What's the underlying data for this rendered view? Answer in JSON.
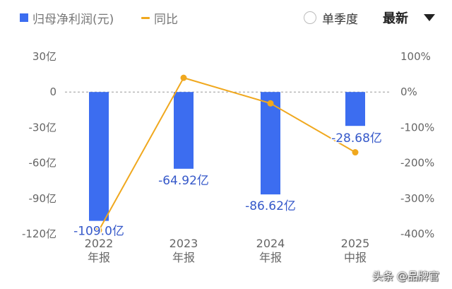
{
  "legend": {
    "bar_label": "归母净利润(元)",
    "line_label": "同比",
    "bar_color": "#3c6df0",
    "line_color": "#f0a81e"
  },
  "controls": {
    "quarter_toggle_label": "单季度",
    "sort_dropdown_label": "最新",
    "dropdown_icon": "caret-down-icon"
  },
  "watermark": "头条 @品牌官",
  "chart_data": {
    "type": "bar",
    "categories": [
      "2022\n年报",
      "2023\n年报",
      "2024\n年报",
      "2025\n中报"
    ],
    "series": [
      {
        "name": "归母净利润(元)",
        "type": "bar",
        "axis": "left",
        "values": [
          -109.0,
          -64.92,
          -86.62,
          -28.68
        ],
        "labels": [
          "-109.0亿",
          "-64.92亿",
          "-86.62亿",
          "-28.68亿"
        ]
      },
      {
        "name": "同比",
        "type": "line",
        "axis": "right",
        "values": [
          -390,
          40,
          -32,
          -170
        ]
      }
    ],
    "y_left": {
      "ticks": [
        30,
        0,
        -30,
        -60,
        -90,
        -120
      ],
      "tick_labels": [
        "30亿",
        "0",
        "-30亿",
        "-60亿",
        "-90亿",
        "-120亿"
      ],
      "range": [
        -120,
        30
      ]
    },
    "y_right": {
      "ticks": [
        100,
        0,
        -100,
        -200,
        -300,
        -400
      ],
      "tick_labels": [
        "100%",
        "0%",
        "-100%",
        "-200%",
        "-300%",
        "-400%"
      ],
      "range": [
        -400,
        100
      ]
    },
    "zero_line": "dashed",
    "legend_position": "top-left"
  }
}
